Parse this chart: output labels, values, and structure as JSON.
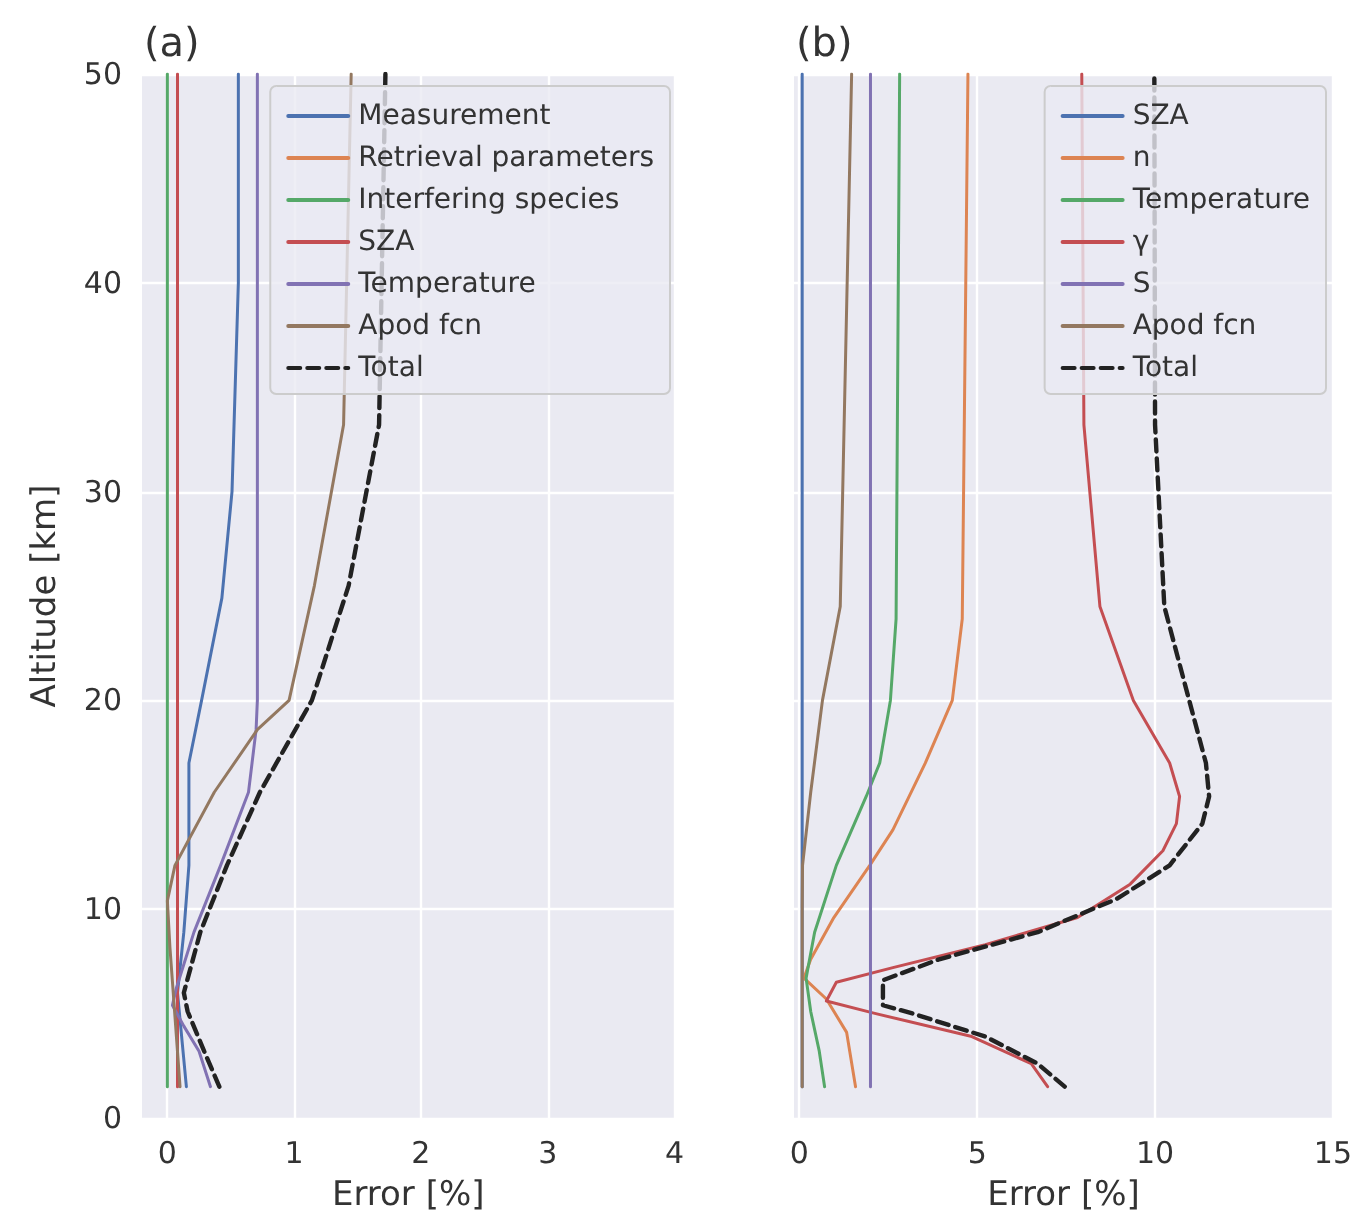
{
  "chart_data": [
    {
      "type": "line",
      "title": "(a)",
      "xlabel": "Error [%]",
      "ylabel": "Altitude [km]",
      "xlim": [
        -0.2,
        4
      ],
      "xticks": [
        0,
        1,
        2,
        3,
        4
      ],
      "ylim": [
        0,
        50
      ],
      "yticks": [
        0,
        10,
        20,
        30,
        40,
        50
      ],
      "grid": true,
      "legend": "top right",
      "series": [
        {
          "name": "Measurement",
          "color": "#4c72b0",
          "x": [
            0.15,
            0.08,
            0.13,
            0.17,
            0.17,
            0.27,
            0.43,
            0.51,
            0.56,
            0.56
          ],
          "values": [
            1.5,
            6,
            8.9,
            12.1,
            17,
            20,
            24.9,
            30,
            40,
            50
          ]
        },
        {
          "name": "Retrieval parameters",
          "color": "#dd8452"
        },
        {
          "name": "Interfering species",
          "color": "#55a868",
          "x": [
            0,
            0
          ],
          "values": [
            1.5,
            50
          ]
        },
        {
          "name": "SZA",
          "color": "#c44e52",
          "x": [
            0.08,
            0.08
          ],
          "values": [
            1.5,
            50
          ]
        },
        {
          "name": "Temperature",
          "color": "#8172b3",
          "x": [
            0.34,
            0.25,
            0.13,
            0.04,
            0.07,
            0.21,
            0.42,
            0.64,
            0.7,
            0.71,
            0.71
          ],
          "values": [
            1.5,
            3.2,
            4.4,
            5.4,
            6.2,
            8.9,
            12.1,
            15.6,
            18.6,
            20,
            50
          ]
        },
        {
          "name": "Apod fcn",
          "color": "#937860",
          "x": [
            0.1,
            0.05,
            0.02,
            0,
            0.06,
            0.37,
            0.71,
            0.96,
            1.16,
            1.39,
            1.45
          ],
          "values": [
            1.5,
            5.7,
            8.2,
            10.4,
            12.1,
            15.6,
            18.6,
            20,
            25.5,
            33.2,
            50
          ]
        },
        {
          "name": "Total",
          "color": "#222222",
          "line_style": "dashed",
          "x": [
            0.41,
            0.29,
            0.16,
            0.13,
            0.26,
            0.47,
            0.73,
            1.14,
            1.43,
            1.67,
            1.72
          ],
          "values": [
            1.5,
            3.2,
            5.1,
            6,
            8.9,
            12.1,
            15.6,
            20,
            25.5,
            33.2,
            50
          ]
        }
      ]
    },
    {
      "type": "line",
      "title": "(b)",
      "xlabel": "Error [%]",
      "xlim": [
        -0.15,
        15
      ],
      "xticks": [
        0,
        5,
        10,
        15
      ],
      "ylim": [
        0,
        50
      ],
      "yticks": [
        0,
        10,
        20,
        30,
        40,
        50
      ],
      "tick_labels": "x",
      "grid": true,
      "legend": "top right",
      "series": [
        {
          "name": "SZA",
          "color": "#4c72b0",
          "x": [
            0.08,
            0.08
          ],
          "values": [
            1.5,
            50
          ]
        },
        {
          "name": "n",
          "color": "#dd8452",
          "x": [
            1.58,
            1.33,
            0.76,
            0.13,
            0.32,
            0.97,
            1.98,
            2.63,
            3.54,
            4.3,
            4.58,
            4.74
          ],
          "values": [
            1.5,
            4.1,
            5.7,
            6.7,
            7.6,
            9.6,
            12.1,
            13.8,
            17,
            20,
            23.9,
            50
          ]
        },
        {
          "name": "Temperature",
          "color": "#55a868",
          "x": [
            0.71,
            0.56,
            0.32,
            0.19,
            0.43,
            1.04,
            1.88,
            2.26,
            2.56,
            2.72,
            2.82
          ],
          "values": [
            1.5,
            3.2,
            5.1,
            6.7,
            8.9,
            12.1,
            15.4,
            17,
            20,
            23.9,
            50
          ]
        },
        {
          "name": "γ",
          "color": "#c44e52",
          "x": [
            6.98,
            6.52,
            4.85,
            2.15,
            0.76,
            1.04,
            2.63,
            5.23,
            7.82,
            9.3,
            10.22,
            10.6,
            10.69,
            10.41,
            9.39,
            8.45,
            8,
            7.94
          ],
          "values": [
            1.5,
            2.6,
            3.9,
            5,
            5.6,
            6.5,
            7.2,
            8.3,
            9.6,
            11.2,
            12.8,
            14.1,
            15.4,
            17,
            20,
            24.5,
            33.2,
            50
          ]
        },
        {
          "name": "S",
          "color": "#8172b3",
          "x": [
            2,
            2
          ],
          "values": [
            1.5,
            50
          ]
        },
        {
          "name": "Apod fcn",
          "color": "#937860",
          "x": [
            0.08,
            0.08,
            0.09,
            0.32,
            0.65,
            1.15,
            1.47
          ],
          "values": [
            1.5,
            10,
            12.1,
            15.6,
            20,
            24.5,
            50
          ]
        },
        {
          "name": "Total",
          "color": "#222222",
          "line_style": "dashed",
          "x": [
            7.46,
            6.7,
            5.23,
            3.19,
            2.35,
            2.35,
            3.93,
            6.7,
            8.93,
            10.41,
            11.33,
            11.52,
            11.43,
            10.96,
            10.26,
            10,
            9.98
          ],
          "values": [
            1.5,
            2.6,
            3.9,
            5,
            5.4,
            6.6,
            7.6,
            8.9,
            10.5,
            12.1,
            14.1,
            15.4,
            17,
            20,
            24.5,
            33.2,
            50
          ]
        }
      ]
    }
  ]
}
